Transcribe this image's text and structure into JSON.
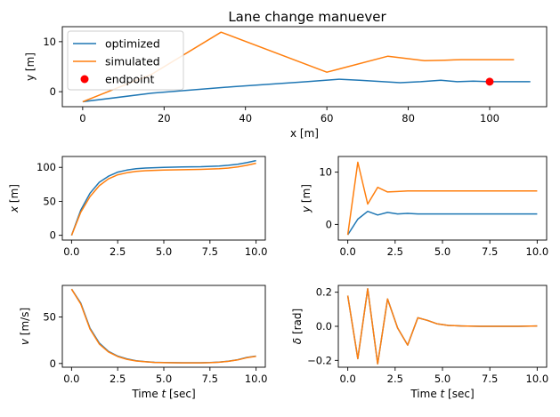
{
  "chart_data": [
    {
      "type": "line",
      "title": "Lane change manuever",
      "xlabel": "x [m]",
      "ylabel": "y [m]",
      "xlim": [
        -5,
        114
      ],
      "ylim": [
        -3,
        13
      ],
      "xticks": [
        0,
        20,
        40,
        60,
        80,
        100
      ],
      "yticks": [
        0,
        10
      ],
      "legend": {
        "position": "top-left",
        "entries": [
          "optimized",
          "simulated",
          "endpoint"
        ]
      },
      "series": [
        {
          "name": "optimized",
          "color": "#1f77b4",
          "x": [
            0,
            17,
            37,
            55,
            63,
            68,
            78,
            83,
            88,
            92,
            96,
            100,
            105,
            110
          ],
          "y": [
            -2,
            -0.3,
            1.0,
            2.0,
            2.5,
            2.3,
            1.8,
            2.0,
            2.3,
            2.0,
            2.1,
            2.0,
            2.0,
            2.0
          ]
        },
        {
          "name": "simulated",
          "color": "#ff7f0e",
          "x": [
            0,
            17,
            34,
            60,
            75,
            84,
            89,
            93,
            100,
            106
          ],
          "y": [
            -2,
            3.5,
            11.9,
            3.9,
            7.1,
            6.2,
            6.3,
            6.4,
            6.4,
            6.4
          ]
        },
        {
          "name": "endpoint",
          "color": "#ff0000",
          "marker": "o",
          "x": [
            100
          ],
          "y": [
            2
          ]
        }
      ]
    },
    {
      "type": "line",
      "xlabel": "",
      "ylabel": "x [m]",
      "xlim": [
        -0.5,
        10.5
      ],
      "ylim": [
        -7,
        116
      ],
      "xticks": [
        "0.0",
        "2.5",
        "5.0",
        "7.5",
        "10.0"
      ],
      "yticks": [
        0,
        50,
        100
      ],
      "series": [
        {
          "name": "optimized",
          "color": "#1f77b4",
          "x": [
            0,
            0.5,
            1.0,
            1.5,
            2.0,
            2.5,
            3.0,
            3.5,
            4.0,
            5.0,
            6.0,
            7.0,
            8.0,
            8.5,
            9.0,
            9.5,
            10.0
          ],
          "y": [
            0,
            37,
            62,
            78,
            87,
            93,
            96,
            98,
            99,
            100,
            100.5,
            101,
            102,
            103,
            104.5,
            107,
            110
          ]
        },
        {
          "name": "simulated",
          "color": "#ff7f0e",
          "x": [
            0,
            0.5,
            1.0,
            1.5,
            2.0,
            2.5,
            3.0,
            3.5,
            4.0,
            5.0,
            6.0,
            7.0,
            8.0,
            8.5,
            9.0,
            9.5,
            10.0
          ],
          "y": [
            0,
            34,
            57,
            73,
            83,
            89,
            92,
            94,
            95,
            96,
            96.5,
            97,
            98,
            99,
            100.5,
            103,
            106
          ]
        }
      ]
    },
    {
      "type": "line",
      "xlabel": "",
      "ylabel": "y [m]",
      "xlim": [
        -0.5,
        10.5
      ],
      "ylim": [
        -3,
        13
      ],
      "xticks": [
        "0.0",
        "2.5",
        "5.0",
        "7.5",
        "10.0"
      ],
      "yticks": [
        0,
        10
      ],
      "series": [
        {
          "name": "optimized",
          "color": "#1f77b4",
          "x": [
            0,
            0.53,
            1.05,
            1.58,
            2.1,
            2.63,
            3.16,
            3.7,
            4.2,
            5,
            6,
            7,
            8,
            9,
            10
          ],
          "y": [
            -2,
            1.0,
            2.5,
            1.8,
            2.3,
            2.0,
            2.1,
            2.0,
            2.0,
            2.0,
            2.0,
            2.0,
            2.0,
            2.0,
            2.0
          ]
        },
        {
          "name": "simulated",
          "color": "#ff7f0e",
          "x": [
            0,
            0.53,
            1.05,
            1.58,
            2.1,
            2.63,
            3.16,
            3.7,
            4.2,
            5,
            6,
            7,
            8,
            9,
            10
          ],
          "y": [
            -2,
            11.9,
            3.9,
            7.1,
            6.2,
            6.3,
            6.4,
            6.4,
            6.4,
            6.4,
            6.4,
            6.4,
            6.4,
            6.4,
            6.4
          ]
        }
      ]
    },
    {
      "type": "line",
      "xlabel": "Time t [sec]",
      "ylabel": "v [m/s]",
      "xlim": [
        -0.5,
        10.5
      ],
      "ylim": [
        -4,
        84
      ],
      "xticks": [
        "0.0",
        "2.5",
        "5.0",
        "7.5",
        "10.0"
      ],
      "yticks": [
        0,
        50
      ],
      "series": [
        {
          "name": "optimized",
          "color": "#1f77b4",
          "x": [
            0,
            0.5,
            1.0,
            1.5,
            2.0,
            2.5,
            3.0,
            3.5,
            4.0,
            4.5,
            5.0,
            6.0,
            7.0,
            7.5,
            8.0,
            8.5,
            9.0,
            9.5,
            10.0
          ],
          "y": [
            80,
            65,
            38,
            22,
            13,
            8,
            5,
            3,
            2,
            1.3,
            1,
            0.8,
            0.8,
            1,
            1.5,
            2.5,
            4,
            6.5,
            8
          ]
        },
        {
          "name": "simulated",
          "color": "#ff7f0e",
          "x": [
            0,
            0.5,
            1.0,
            1.5,
            2.0,
            2.5,
            3.0,
            3.5,
            4.0,
            4.5,
            5.0,
            6.0,
            7.0,
            7.5,
            8.0,
            8.5,
            9.0,
            9.5,
            10.0
          ],
          "y": [
            80,
            64,
            37,
            21,
            12.5,
            7.5,
            4.5,
            2.7,
            1.8,
            1.2,
            0.9,
            0.7,
            0.7,
            0.9,
            1.4,
            2.3,
            3.8,
            6.2,
            7.8
          ]
        }
      ]
    },
    {
      "type": "line",
      "xlabel": "Time t [sec]",
      "ylabel": "δ [rad]",
      "xlim": [
        -0.5,
        10.5
      ],
      "ylim": [
        -0.24,
        0.24
      ],
      "xticks": [
        "0.0",
        "2.5",
        "5.0",
        "7.5",
        "10.0"
      ],
      "yticks": [
        "-0.2",
        "0.0",
        "0.2"
      ],
      "series": [
        {
          "name": "optimized",
          "color": "#1f77b4",
          "x": [
            0,
            0.53,
            1.05,
            1.58,
            2.1,
            2.63,
            3.16,
            3.7,
            4.2,
            4.7,
            5.3,
            6,
            7,
            8,
            9,
            10
          ],
          "y": [
            0.18,
            -0.19,
            0.22,
            -0.22,
            0.16,
            -0.01,
            -0.11,
            0.05,
            0.035,
            0.015,
            0.005,
            0.002,
            0.0,
            0.0,
            0.0,
            0.002
          ]
        },
        {
          "name": "simulated",
          "color": "#ff7f0e",
          "x": [
            0,
            0.53,
            1.05,
            1.58,
            2.1,
            2.63,
            3.16,
            3.7,
            4.2,
            4.7,
            5.3,
            6,
            7,
            8,
            9,
            10
          ],
          "y": [
            0.18,
            -0.19,
            0.22,
            -0.22,
            0.16,
            -0.01,
            -0.11,
            0.05,
            0.035,
            0.015,
            0.005,
            0.002,
            0.0,
            0.0,
            0.0,
            0.002
          ]
        }
      ]
    }
  ]
}
